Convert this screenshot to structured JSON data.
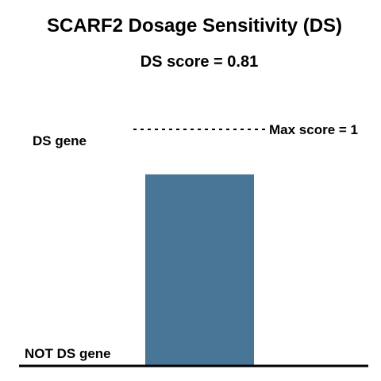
{
  "chart_data": {
    "type": "bar",
    "title": "SCARF2 Dosage Sensitivity (DS)",
    "subtitle": "DS score = 0.81",
    "categories": [
      ""
    ],
    "values": [
      0.81
    ],
    "ylim": [
      0,
      1
    ],
    "grid": false,
    "legend": "none",
    "y_labels": {
      "top": "DS gene",
      "bottom": "NOT DS gene"
    },
    "reference_line": {
      "value": 1,
      "label": "Max score = 1",
      "style": "dotted"
    },
    "colors": {
      "bar": "#497596",
      "baseline": "#000000"
    }
  }
}
